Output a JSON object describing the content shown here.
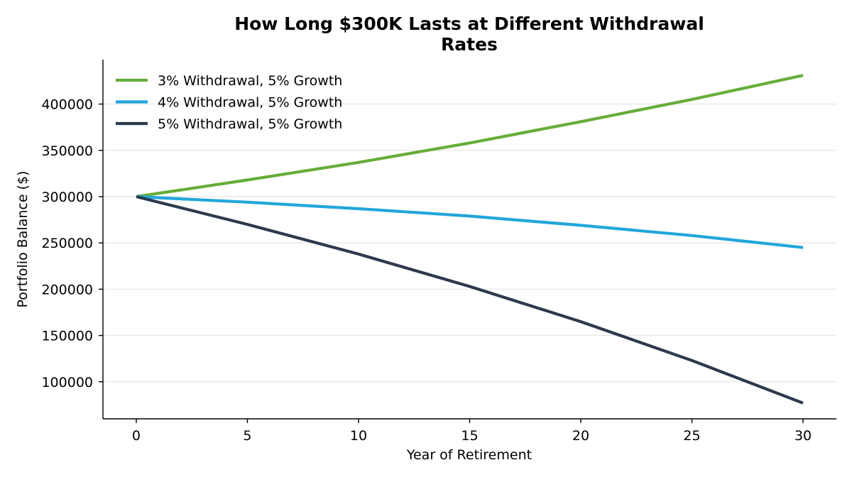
{
  "chart_data": {
    "type": "line",
    "title_lines": [
      "How Long $300K Lasts at Different Withdrawal",
      "Rates"
    ],
    "xlabel": "Year of Retirement",
    "ylabel": "Portfolio Balance ($)",
    "xlim": [
      -1.5,
      31.5
    ],
    "ylim": [
      60000,
      448000
    ],
    "x_ticks": [
      0,
      5,
      10,
      15,
      20,
      25,
      30
    ],
    "y_ticks": [
      100000,
      150000,
      200000,
      250000,
      300000,
      350000,
      400000
    ],
    "grid": "horizontal",
    "legend_position": "top-left",
    "x": [
      0,
      5,
      10,
      15,
      20,
      25,
      30
    ],
    "series": [
      {
        "name": "3% Withdrawal, 5% Growth",
        "color": "#66ad3a",
        "values": [
          300000,
          318000,
          337000,
          358000,
          381000,
          405000,
          431000
        ]
      },
      {
        "name": "4% Withdrawal, 5% Growth",
        "color": "#22a6dc",
        "values": [
          300000,
          294000,
          287000,
          279000,
          269000,
          258000,
          245000
        ]
      },
      {
        "name": "5% Withdrawal, 5% Growth",
        "color": "#2c3a4c",
        "values": [
          300000,
          270000,
          238000,
          203000,
          165000,
          123000,
          77000
        ]
      }
    ]
  }
}
